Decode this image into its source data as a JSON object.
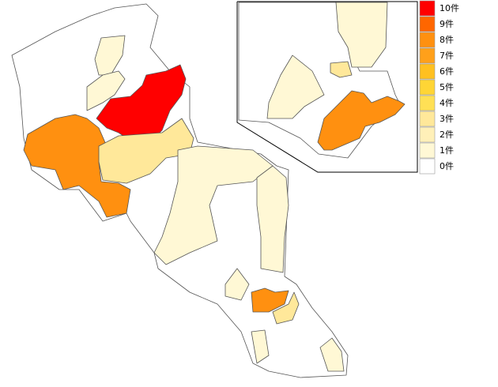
{
  "legend": [
    {
      "value": 10,
      "label": "10件",
      "color": "#ff0000"
    },
    {
      "value": 9,
      "label": "9件",
      "color": "#ff6600"
    },
    {
      "value": 8,
      "label": "8件",
      "color": "#ff9010"
    },
    {
      "value": 7,
      "label": "7件",
      "color": "#ffa01a"
    },
    {
      "value": 6,
      "label": "6件",
      "color": "#ffc020"
    },
    {
      "value": 5,
      "label": "5件",
      "color": "#ffd535"
    },
    {
      "value": 4,
      "label": "4件",
      "color": "#ffe055"
    },
    {
      "value": 3,
      "label": "3件",
      "color": "#ffe89a"
    },
    {
      "value": 2,
      "label": "2件",
      "color": "#fff0b8"
    },
    {
      "value": 1,
      "label": "1件",
      "color": "#fff8d5"
    },
    {
      "value": 0,
      "label": "0件",
      "color": "#ffffff"
    }
  ],
  "regions": [
    0,
    0,
    10,
    8,
    3,
    1,
    1,
    8,
    3,
    1,
    1,
    8,
    1,
    1,
    3,
    1,
    1,
    1
  ]
}
